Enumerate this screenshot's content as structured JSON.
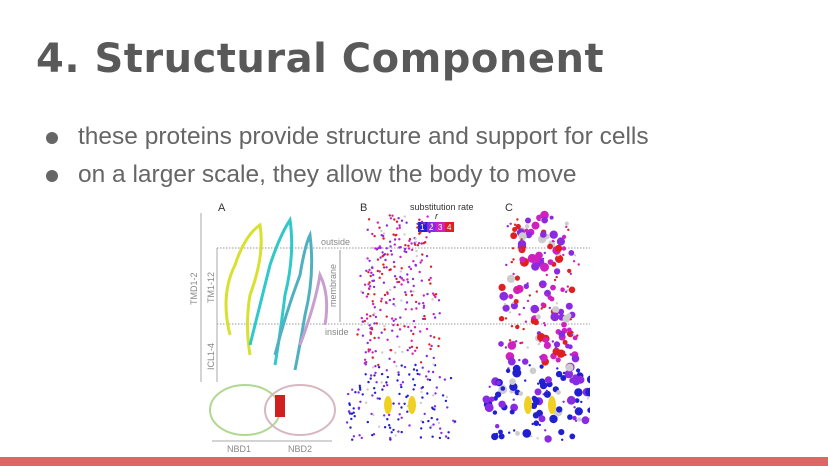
{
  "slide": {
    "title": "4.  Structural Component",
    "bullets": [
      "these proteins provide structure and support for cells",
      "on a larger scale, they allow the body to move"
    ],
    "accent_color": "#e06666"
  },
  "figure": {
    "panels": [
      "A",
      "B",
      "C"
    ],
    "legend_title": "substitution rate",
    "legend_symbol": "r",
    "legend_values": [
      "1",
      "2",
      "3",
      "4"
    ],
    "legend_colors": [
      "#2020d0",
      "#8a2be2",
      "#d020c0",
      "#e02020"
    ],
    "labels": {
      "outside": "outside",
      "inside": "inside",
      "membrane": "membrane",
      "tmd": "TMD1-2",
      "tm": "TM1-12",
      "icl": "ICL1-4",
      "nbd1": "NBD1",
      "nbd2": "NBD2"
    }
  }
}
